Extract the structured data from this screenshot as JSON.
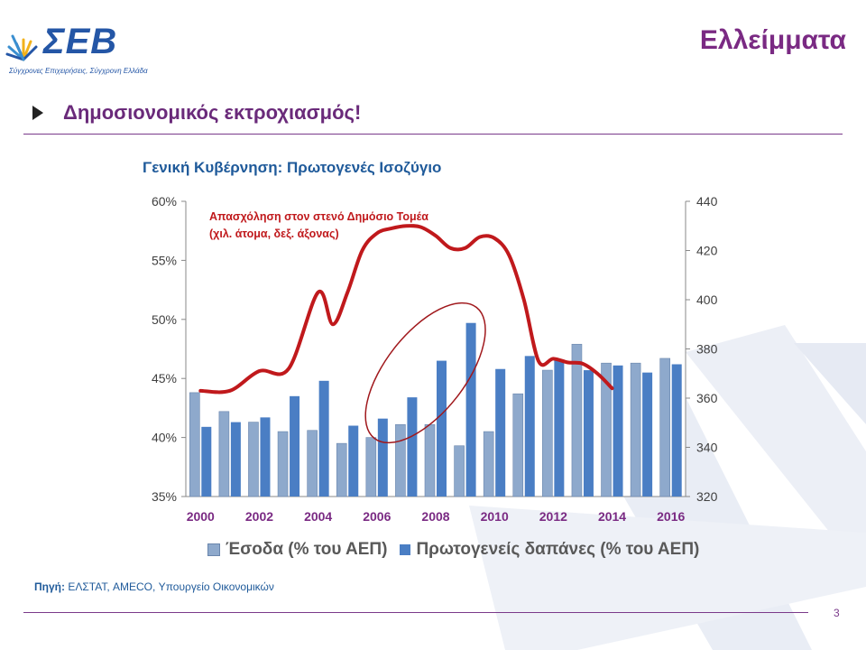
{
  "header": {
    "logo_text": "ΣΕΒ",
    "logo_tagline": "Σύγχρονες Επιχειρήσεις, Σύγχρονη Ελλάδα",
    "slide_title": "Ελλείμματα"
  },
  "bullet": {
    "text": "Δημοσιονομικός εκτροχιασμός!"
  },
  "chart_title": "Γενική Κυβέρνηση: Πρωτογενές Ισοζύγιο",
  "legend": {
    "revenue_label": "Έσοδα (% του ΑΕΠ)",
    "spending_label": "Πρωτογενείς δαπάνες (% του ΑΕΠ)"
  },
  "source": {
    "label": "Πηγή:",
    "text": "ΕΛΣΤΑΤ, AMECO, Υπουργείο Οικονομικών"
  },
  "page_number": "3",
  "colors": {
    "revenue": "#8ea9cc",
    "spending": "#4a7ec4",
    "employment_line": "#c0191c",
    "axis_labels": "#7a2a83",
    "title": "#7a2a83",
    "chart_title": "#1f5a9a"
  },
  "chart_data": {
    "type": "bar",
    "categories": [
      "2000",
      "2001",
      "2002",
      "2003",
      "2004",
      "2005",
      "2006",
      "2007",
      "2008",
      "2009",
      "2010",
      "2011",
      "2012",
      "2013",
      "2014",
      "2015",
      "2016"
    ],
    "x_tick_labels": [
      "2000",
      "2002",
      "2004",
      "2006",
      "2008",
      "2010",
      "2012",
      "2014",
      "2016"
    ],
    "series": [
      {
        "name": "Έσοδα (% του ΑΕΠ)",
        "axis": "left",
        "kind": "bar",
        "values": [
          43.8,
          42.2,
          41.3,
          40.5,
          40.6,
          39.5,
          40.0,
          41.1,
          41.1,
          39.3,
          40.5,
          43.7,
          45.7,
          47.9,
          46.3,
          46.3,
          46.7
        ]
      },
      {
        "name": "Πρωτογενείς δαπάνες (% του ΑΕΠ)",
        "axis": "left",
        "kind": "bar",
        "values": [
          40.9,
          41.3,
          41.7,
          43.5,
          44.8,
          41.0,
          41.6,
          43.4,
          46.5,
          49.7,
          45.8,
          46.9,
          46.6,
          45.7,
          46.1,
          45.5,
          46.2
        ]
      },
      {
        "kind": "line",
        "axis": "right",
        "x": [
          2000,
          2001,
          2002,
          2003,
          2004,
          2004.5,
          2005,
          2005.5,
          2006,
          2006.5,
          2007,
          2007.5,
          2008,
          2008.5,
          2009,
          2009.5,
          2010,
          2010.5,
          2011,
          2011.5,
          2012,
          2012.5,
          2013,
          2013.5,
          2014
        ],
        "y": [
          363,
          363,
          371,
          372,
          403,
          390,
          403,
          420,
          427,
          429,
          430,
          429.5,
          426,
          421,
          421,
          425.5,
          425,
          418,
          400,
          375,
          376,
          374.5,
          374,
          370,
          364
        ]
      }
    ],
    "annotation": "Απασχόληση στον στενό Δημόσιο Τομέα\n(χιλ. άτομα, δεξ. άξονας)",
    "y_left_ticks": [
      "35%",
      "40%",
      "45%",
      "50%",
      "55%",
      "60%"
    ],
    "y_left_range": [
      35,
      60
    ],
    "y_right_ticks": [
      "320",
      "340",
      "360",
      "380",
      "400",
      "420",
      "440"
    ],
    "y_right_range": [
      320,
      440
    ],
    "grid": false,
    "legend_position": "bottom",
    "highlight": "ellipse around 2006–2009"
  }
}
